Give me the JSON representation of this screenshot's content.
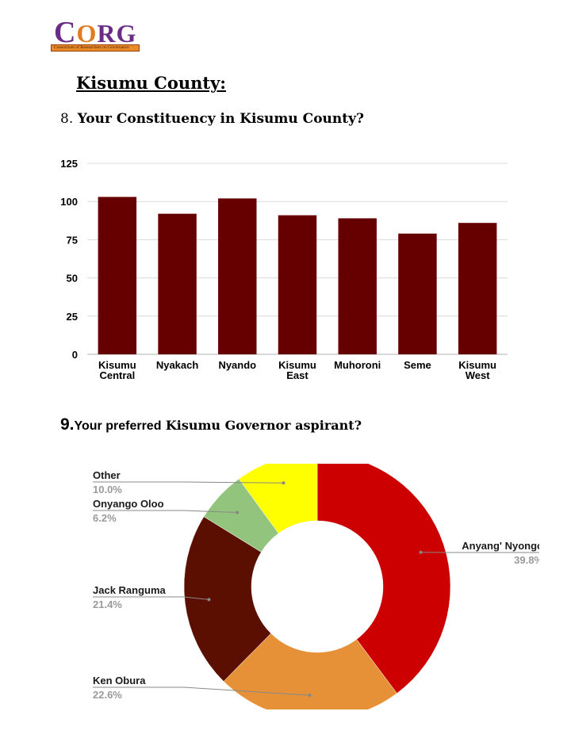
{
  "logo": {
    "wordmark_c": "C",
    "wordmark_o": "O",
    "wordmark_rg": "RG",
    "tagline": "Consortium of Researchers on Governance"
  },
  "header": {
    "county_title": "Kisumu County:",
    "q8_number": "8.",
    "q8_text": "Your Constituency in Kisumu County?",
    "q9_number": "9.",
    "q9_text_a": "Your preferred",
    "q9_text_b": "Kisumu Governor aspirant?"
  },
  "chart_data": [
    {
      "type": "bar",
      "categories": [
        "Kisumu Central",
        "Nyakach",
        "Nyando",
        "Kisumu East",
        "Muhoroni",
        "Seme",
        "Kisumu West"
      ],
      "category_lines": [
        [
          "Kisumu",
          "Central"
        ],
        [
          "Nyakach"
        ],
        [
          "Nyando"
        ],
        [
          "Kisumu",
          "East"
        ],
        [
          "Muhoroni"
        ],
        [
          "Seme"
        ],
        [
          "Kisumu",
          "West"
        ]
      ],
      "values": [
        103,
        92,
        102,
        91,
        89,
        79,
        86
      ],
      "ylim": [
        0,
        125
      ],
      "yticks": [
        "0",
        "25",
        "50",
        "75",
        "100",
        "125"
      ],
      "grid": true,
      "bar_color": "#660000",
      "grid_color": "#d9d9d9"
    },
    {
      "type": "pie",
      "donut": true,
      "slices": [
        {
          "label": "Anyang' Nyongo",
          "value": 39.8,
          "pct": "39.8%",
          "color": "#cc0000"
        },
        {
          "label": "Ken Obura",
          "value": 22.6,
          "pct": "22.6%",
          "color": "#e69138"
        },
        {
          "label": "Jack Ranguma",
          "value": 21.4,
          "pct": "21.4%",
          "color": "#5b0f00"
        },
        {
          "label": "Onyango Oloo",
          "value": 6.2,
          "pct": "6.2%",
          "color": "#93c47d"
        },
        {
          "label": "Other",
          "value": 10.0,
          "pct": "10.0%",
          "color": "#ffff00"
        }
      ]
    }
  ]
}
